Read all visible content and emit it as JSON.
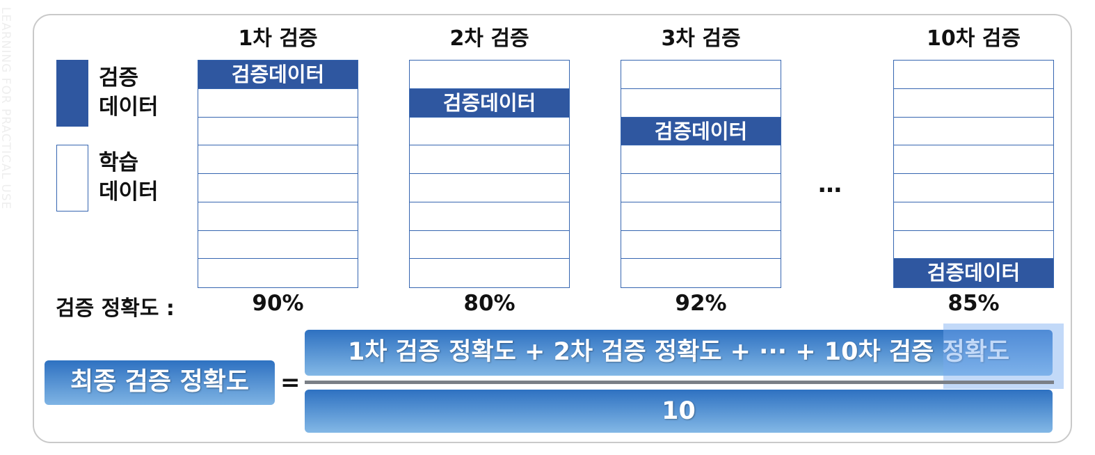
{
  "watermark": "LEARNING FOR PRACTICAL USE",
  "legend": {
    "validation_label": "검증\n데이터",
    "training_label": "학습\n데이터"
  },
  "folds": [
    {
      "title": "1차 검증",
      "val_index": 0,
      "accuracy": "90%"
    },
    {
      "title": "2차 검증",
      "val_index": 1,
      "accuracy": "80%"
    },
    {
      "title": "3차 검증",
      "val_index": 2,
      "accuracy": "92%"
    },
    {
      "title": "10차 검증",
      "val_index": 7,
      "accuracy": "85%"
    }
  ],
  "fold_cell_label": "검증데이터",
  "rows_per_fold": 8,
  "accuracy_label": "검증 정확도 :",
  "ellipsis": "…",
  "formula": {
    "result_label": "최종 검증 정확도",
    "equals": "=",
    "numerator": "1차 검증 정확도 + 2차 검증 정확도 + ··· + 10차 검증 정확도",
    "denominator": "10"
  },
  "colors": {
    "validation": "#2f57a0",
    "border": "#3565b0",
    "gradient_top": "#2e71c1",
    "gradient_bottom": "#83b8e6"
  }
}
